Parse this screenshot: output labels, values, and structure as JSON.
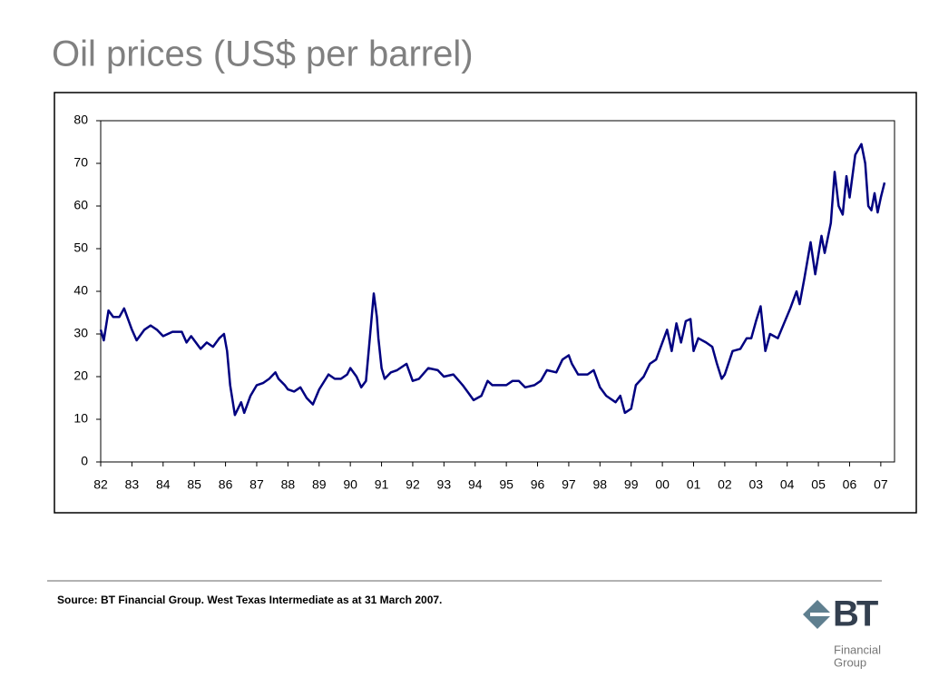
{
  "chart_data": {
    "type": "line",
    "title": "Oil prices (US$ per barrel)",
    "x": [
      1982.0,
      1982.1,
      1982.25,
      1982.4,
      1982.6,
      1982.75,
      1983.0,
      1983.15,
      1983.4,
      1983.6,
      1983.8,
      1984.0,
      1984.3,
      1984.6,
      1984.75,
      1984.9,
      1985.2,
      1985.4,
      1985.6,
      1985.8,
      1985.95,
      1986.05,
      1986.15,
      1986.3,
      1986.5,
      1986.6,
      1986.8,
      1987.0,
      1987.2,
      1987.4,
      1987.6,
      1987.7,
      1987.9,
      1988.0,
      1988.2,
      1988.4,
      1988.6,
      1988.8,
      1989.0,
      1989.3,
      1989.5,
      1989.7,
      1989.9,
      1990.0,
      1990.2,
      1990.35,
      1990.5,
      1990.6,
      1990.75,
      1990.85,
      1990.9,
      1991.0,
      1991.1,
      1991.3,
      1991.5,
      1991.8,
      1992.0,
      1992.2,
      1992.5,
      1992.8,
      1993.0,
      1993.3,
      1993.6,
      1993.8,
      1993.95,
      1994.2,
      1994.4,
      1994.55,
      1994.8,
      1995.0,
      1995.2,
      1995.4,
      1995.6,
      1995.9,
      1996.1,
      1996.3,
      1996.6,
      1996.8,
      1997.0,
      1997.1,
      1997.3,
      1997.6,
      1997.8,
      1998.0,
      1998.2,
      1998.5,
      1998.65,
      1998.8,
      1999.0,
      1999.15,
      1999.4,
      1999.6,
      1999.8,
      2000.0,
      2000.15,
      2000.3,
      2000.45,
      2000.6,
      2000.75,
      2000.9,
      2001.0,
      2001.15,
      2001.4,
      2001.6,
      2001.75,
      2001.9,
      2002.0,
      2002.25,
      2002.5,
      2002.7,
      2002.85,
      2003.0,
      2003.15,
      2003.3,
      2003.45,
      2003.7,
      2003.9,
      2004.1,
      2004.3,
      2004.4,
      2004.55,
      2004.75,
      2004.9,
      2005.1,
      2005.2,
      2005.4,
      2005.52,
      2005.65,
      2005.78,
      2005.9,
      2006.0,
      2006.18,
      2006.38,
      2006.5,
      2006.6,
      2006.7,
      2006.8,
      2006.9,
      2007.0,
      2007.12
    ],
    "values": [
      31,
      28.5,
      35.5,
      34,
      34,
      36,
      31,
      28.5,
      31,
      32,
      31,
      29.5,
      30.5,
      30.5,
      28,
      29.5,
      26.5,
      28,
      27,
      29,
      30,
      26,
      18,
      11,
      14,
      11.5,
      15.5,
      18,
      18.5,
      19.5,
      21,
      19.5,
      18,
      17,
      16.5,
      17.5,
      15,
      13.5,
      17,
      20.5,
      19.5,
      19.5,
      20.5,
      22,
      20,
      17.5,
      19,
      27,
      39.5,
      34,
      29,
      22,
      19.5,
      21,
      21.5,
      23,
      19,
      19.5,
      22,
      21.5,
      20,
      20.5,
      18,
      16,
      14.5,
      15.5,
      19,
      18,
      18,
      18,
      19,
      19,
      17.5,
      18,
      19,
      21.5,
      21,
      24,
      25,
      23,
      20.5,
      20.5,
      21.5,
      17.5,
      15.5,
      14,
      15.5,
      11.5,
      12.5,
      18,
      20,
      23,
      24,
      28,
      31,
      26,
      32.5,
      28,
      33,
      33.5,
      26,
      29,
      28,
      27,
      23,
      19.5,
      20.5,
      26,
      26.5,
      29,
      29,
      33,
      36.5,
      26,
      30,
      29,
      32.5,
      36,
      40,
      37,
      43,
      51.5,
      44,
      53,
      49,
      56,
      68,
      60,
      58,
      67,
      62,
      72,
      74.5,
      70,
      60,
      59,
      63,
      58.5,
      62,
      65.5
    ],
    "color": "#000080",
    "xlim": [
      1982,
      2007.44
    ],
    "ylim": [
      0,
      80
    ],
    "yticks": [
      0,
      10,
      20,
      30,
      40,
      50,
      60,
      70,
      80
    ],
    "xticks": [
      {
        "value": 1982,
        "label": "82"
      },
      {
        "value": 1983,
        "label": "83"
      },
      {
        "value": 1984,
        "label": "84"
      },
      {
        "value": 1985,
        "label": "85"
      },
      {
        "value": 1986,
        "label": "86"
      },
      {
        "value": 1987,
        "label": "87"
      },
      {
        "value": 1988,
        "label": "88"
      },
      {
        "value": 1989,
        "label": "89"
      },
      {
        "value": 1990,
        "label": "90"
      },
      {
        "value": 1991,
        "label": "91"
      },
      {
        "value": 1992,
        "label": "92"
      },
      {
        "value": 1993,
        "label": "93"
      },
      {
        "value": 1994,
        "label": "94"
      },
      {
        "value": 1995,
        "label": "95"
      },
      {
        "value": 1996,
        "label": "96"
      },
      {
        "value": 1997,
        "label": "97"
      },
      {
        "value": 1998,
        "label": "98"
      },
      {
        "value": 1999,
        "label": "99"
      },
      {
        "value": 2000,
        "label": "00"
      },
      {
        "value": 2001,
        "label": "01"
      },
      {
        "value": 2002,
        "label": "02"
      },
      {
        "value": 2003,
        "label": "03"
      },
      {
        "value": 2004,
        "label": "04"
      },
      {
        "value": 2005,
        "label": "05"
      },
      {
        "value": 2006,
        "label": "06"
      },
      {
        "value": 2007,
        "label": "07"
      }
    ],
    "grid": false
  },
  "source": "Source: BT Financial Group. West Texas Intermediate as at 31 March 2007.",
  "logo": {
    "name": "BT",
    "sub": [
      "Financial",
      "Group"
    ]
  }
}
